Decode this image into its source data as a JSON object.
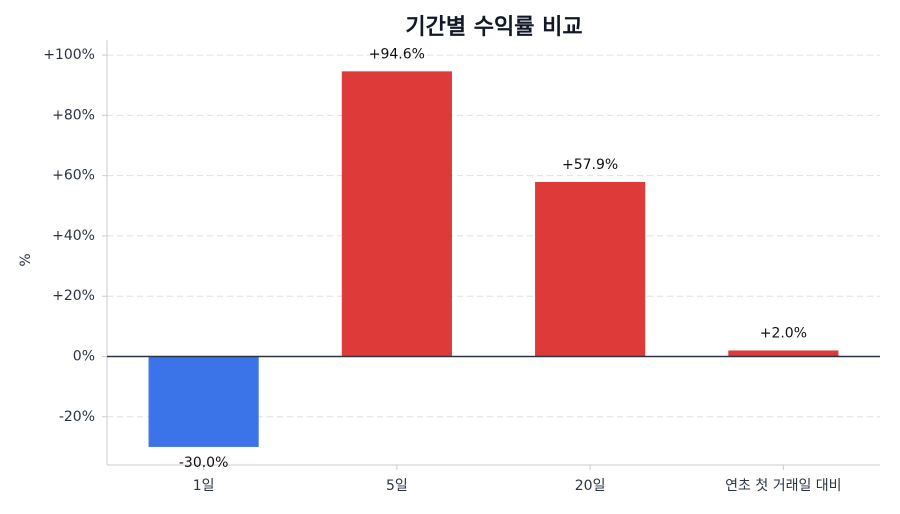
{
  "chart_data": {
    "type": "bar",
    "title": "기간별 수익률 비교",
    "y_label": "%",
    "categories": [
      "1일",
      "5일",
      "20일",
      "연초 첫 거래일 대비"
    ],
    "values": [
      -30.0,
      94.6,
      57.9,
      2.0
    ],
    "value_labels": [
      "-30.0%",
      "+94.6%",
      "+57.9%",
      "+2.0%"
    ],
    "colors": [
      "#3b73e8",
      "#de3a3a",
      "#de3a3a",
      "#de3a3a"
    ],
    "ylim": [
      -36,
      105
    ],
    "yticks": [
      {
        "value": -20,
        "label": "-20%"
      },
      {
        "value": 0,
        "label": "0%"
      },
      {
        "value": 20,
        "label": "+20%"
      },
      {
        "value": 40,
        "label": "+40%"
      },
      {
        "value": 60,
        "label": "+60%"
      },
      {
        "value": 80,
        "label": "+80%"
      },
      {
        "value": 100,
        "label": "+100%"
      }
    ],
    "grid": true
  }
}
